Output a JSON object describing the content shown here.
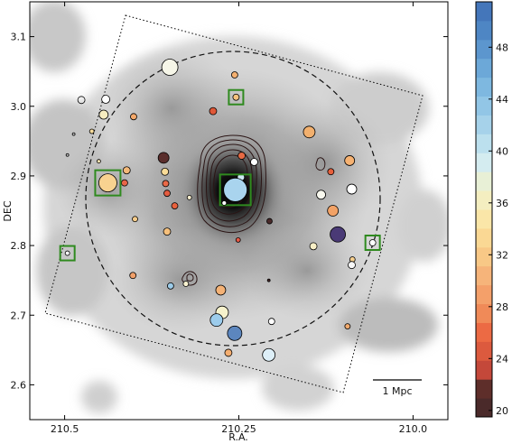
{
  "chart_data": {
    "type": "scatter",
    "xlabel": "R.A.",
    "ylabel": "DEC",
    "xlim": [
      210.55,
      209.95
    ],
    "ylim": [
      2.55,
      3.15
    ],
    "x_ticks": [
      "210.5",
      "210.25",
      "210.0"
    ],
    "x_tick_values": [
      210.5,
      210.25,
      210.0
    ],
    "y_ticks": [
      "2.6",
      "2.7",
      "2.8",
      "2.9",
      "3.0",
      "3.1"
    ],
    "y_tick_values": [
      2.6,
      2.7,
      2.8,
      2.9,
      3.0,
      3.1
    ],
    "colorbar": {
      "ticks": [
        "20",
        "24",
        "28",
        "32",
        "36",
        "40",
        "44",
        "48"
      ],
      "tick_values": [
        20,
        24,
        28,
        32,
        36,
        40,
        44,
        48
      ],
      "range": [
        19.5,
        51.5
      ],
      "colors": [
        "#4a2a2a",
        "#5e2e2a",
        "#c4483a",
        "#dc5a3e",
        "#ec6a44",
        "#f08a58",
        "#f4a06a",
        "#f6b47a",
        "#f8c886",
        "#fad894",
        "#fae6a8",
        "#f4eec0",
        "#e8f0d6",
        "#d4ecf0",
        "#bce0ee",
        "#a6d2ea",
        "#92c6e6",
        "#7eb8e0",
        "#6ca8d8",
        "#5c96ce",
        "#4e86c4",
        "#4476ba"
      ]
    },
    "scale_bar": {
      "label": "1 Mpc"
    },
    "outline_marker_ra": 210.32,
    "galaxies": [
      {
        "ra": 210.349,
        "dec": 3.056,
        "value": 38,
        "size": 9,
        "color": "#f6f6e8"
      },
      {
        "ra": 210.256,
        "dec": 3.045,
        "value": 30,
        "size": 3.5,
        "color": "#f4b070"
      },
      {
        "ra": 210.441,
        "dec": 3.01,
        "value": 40,
        "size": 4.5,
        "color": "#ffffff"
      },
      {
        "ra": 210.254,
        "dec": 3.013,
        "value": 31,
        "size": 3.5,
        "color": "#f6c27e",
        "box": true
      },
      {
        "ra": 210.287,
        "dec": 2.993,
        "value": 25,
        "size": 4,
        "color": "#e05838"
      },
      {
        "ra": 210.444,
        "dec": 2.988,
        "value": 36,
        "size": 5,
        "color": "#f6ecc0"
      },
      {
        "ra": 210.401,
        "dec": 2.985,
        "value": 30,
        "size": 3.5,
        "color": "#f4a86a"
      },
      {
        "ra": 210.149,
        "dec": 2.963,
        "value": 31,
        "size": 6.5,
        "color": "#f2b06e"
      },
      {
        "ra": 210.461,
        "dec": 2.964,
        "value": 35,
        "size": 2.5,
        "color": "#f8dc9c"
      },
      {
        "ra": 210.358,
        "dec": 2.926,
        "value": 21,
        "size": 6,
        "color": "#5a2e2c"
      },
      {
        "ra": 210.246,
        "dec": 2.929,
        "value": 26,
        "size": 4,
        "color": "#e66a44"
      },
      {
        "ra": 210.228,
        "dec": 2.92,
        "value": 40,
        "size": 4,
        "color": "#ffffff"
      },
      {
        "ra": 210.451,
        "dec": 2.921,
        "value": 36,
        "size": 2,
        "color": "#f6e2b0"
      },
      {
        "ra": 210.411,
        "dec": 2.908,
        "value": 31,
        "size": 4,
        "color": "#f4b878"
      },
      {
        "ra": 210.356,
        "dec": 2.906,
        "value": 33,
        "size": 4,
        "color": "#fadc98"
      },
      {
        "ra": 210.118,
        "dec": 2.906,
        "value": 25,
        "size": 3.5,
        "color": "#e6603c"
      },
      {
        "ra": 210.414,
        "dec": 2.89,
        "value": 26,
        "size": 3.5,
        "color": "#e8664a"
      },
      {
        "ra": 210.091,
        "dec": 2.922,
        "value": 30,
        "size": 5.5,
        "color": "#f6b272"
      },
      {
        "ra": 210.247,
        "dec": 2.898,
        "value": 40,
        "size": 4,
        "color": "#cfe9f4"
      },
      {
        "ra": 210.438,
        "dec": 2.89,
        "value": 34,
        "size": 10,
        "color": "#f8d290",
        "box": true
      },
      {
        "ra": 210.355,
        "dec": 2.889,
        "value": 27,
        "size": 3.5,
        "color": "#ea6a48"
      },
      {
        "ra": 210.353,
        "dec": 2.875,
        "value": 26,
        "size": 3.5,
        "color": "#e45c40"
      },
      {
        "ra": 210.321,
        "dec": 2.869,
        "value": 36,
        "size": 2.5,
        "color": "#f8eccc"
      },
      {
        "ra": 210.255,
        "dec": 2.88,
        "value": 41,
        "size": 13,
        "color": "#a9d4ee",
        "box": true
      },
      {
        "ra": 210.271,
        "dec": 2.861,
        "value": 40,
        "size": 2.5,
        "color": "#ffffff"
      },
      {
        "ra": 210.132,
        "dec": 2.873,
        "value": 38,
        "size": 5,
        "color": "#f8f8ee"
      },
      {
        "ra": 210.088,
        "dec": 2.881,
        "value": 38,
        "size": 5.5,
        "color": "#ffffff"
      },
      {
        "ra": 210.342,
        "dec": 2.857,
        "value": 26,
        "size": 3.5,
        "color": "#e8623e"
      },
      {
        "ra": 210.115,
        "dec": 2.85,
        "value": 29,
        "size": 6,
        "color": "#f2a266"
      },
      {
        "ra": 210.399,
        "dec": 2.838,
        "value": 33,
        "size": 3,
        "color": "#f6cc8a"
      },
      {
        "ra": 210.206,
        "dec": 2.835,
        "value": 20,
        "size": 3,
        "color": "#4a2a2a"
      },
      {
        "ra": 210.108,
        "dec": 2.816,
        "value": 48,
        "size": 8.5,
        "color": "#4a3a76"
      },
      {
        "ra": 210.353,
        "dec": 2.82,
        "value": 32,
        "size": 4,
        "color": "#f6c07c"
      },
      {
        "ra": 210.251,
        "dec": 2.808,
        "value": 27,
        "size": 2.5,
        "color": "#ea5a46"
      },
      {
        "ra": 210.143,
        "dec": 2.799,
        "value": 36,
        "size": 4,
        "color": "#f8efc6"
      },
      {
        "ra": 210.058,
        "dec": 2.804,
        "value": 40,
        "size": 3.5,
        "color": "#ffffff",
        "box": true
      },
      {
        "ra": 210.496,
        "dec": 2.789,
        "value": 38,
        "size": 2.5,
        "color": "#ffffff",
        "box": true
      },
      {
        "ra": 210.087,
        "dec": 2.78,
        "value": 33,
        "size": 3,
        "color": "#f6cf8e"
      },
      {
        "ra": 210.088,
        "dec": 2.772,
        "value": 38,
        "size": 4,
        "color": "#f8f8f8"
      },
      {
        "ra": 210.402,
        "dec": 2.757,
        "value": 28,
        "size": 3.5,
        "color": "#f0a06a"
      },
      {
        "ra": 210.348,
        "dec": 2.742,
        "value": 40,
        "size": 3.5,
        "color": "#9ccbe8"
      },
      {
        "ra": 210.326,
        "dec": 2.745,
        "value": 36,
        "size": 3,
        "color": "#f8f2d0"
      },
      {
        "ra": 210.276,
        "dec": 2.736,
        "value": 30,
        "size": 5.5,
        "color": "#f4b276"
      },
      {
        "ra": 210.207,
        "dec": 2.75,
        "value": 20,
        "size": 1.5,
        "color": "#4a2a2a"
      },
      {
        "ra": 210.274,
        "dec": 2.704,
        "value": 36,
        "size": 7,
        "color": "#f6f2cc"
      },
      {
        "ra": 210.282,
        "dec": 2.693,
        "value": 42,
        "size": 7,
        "color": "#9cccec"
      },
      {
        "ra": 210.203,
        "dec": 2.691,
        "value": 38,
        "size": 3.5,
        "color": "#ffffff"
      },
      {
        "ra": 210.256,
        "dec": 2.674,
        "value": 46,
        "size": 8,
        "color": "#5c86be"
      },
      {
        "ra": 210.094,
        "dec": 2.684,
        "value": 30,
        "size": 3,
        "color": "#f2aa6e"
      },
      {
        "ra": 210.265,
        "dec": 2.646,
        "value": 30,
        "size": 4,
        "color": "#f4ae70"
      },
      {
        "ra": 210.207,
        "dec": 2.643,
        "value": 39,
        "size": 7,
        "color": "#ddeff8"
      },
      {
        "ra": 210.476,
        "dec": 3.009,
        "value": 38,
        "size": 4,
        "color": "#ffffff",
        "outline_only": true
      },
      {
        "ra": 210.487,
        "dec": 2.96,
        "value": 38,
        "size": 1.5,
        "color": "#ffffff",
        "outline_only": true
      },
      {
        "ra": 210.496,
        "dec": 2.93,
        "value": 38,
        "size": 1.5,
        "color": "#ffffff",
        "outline_only": true
      }
    ]
  }
}
